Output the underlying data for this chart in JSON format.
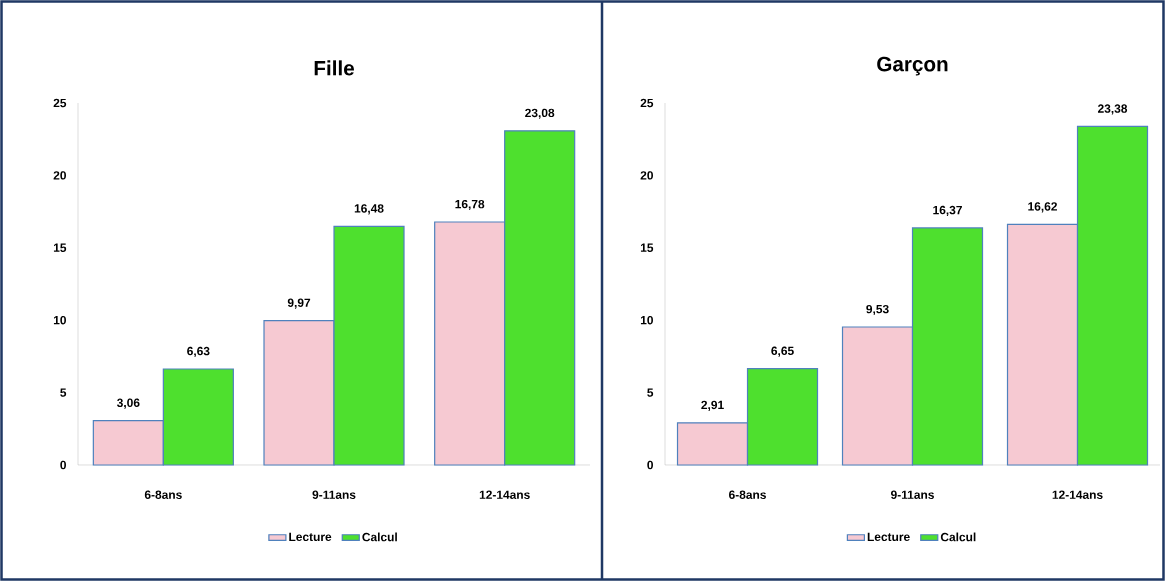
{
  "chart_data": [
    {
      "type": "bar",
      "title": "Fille",
      "categories": [
        "6-8ans",
        "9-11ans",
        "12-14ans"
      ],
      "series": [
        {
          "name": "Lecture",
          "color": "#f6c9d2",
          "values": [
            3.06,
            9.97,
            16.78
          ],
          "value_labels": [
            "3,06",
            "9,97",
            "16,78"
          ]
        },
        {
          "name": "Calcul",
          "color": "#4ee02e",
          "values": [
            6.63,
            16.48,
            23.08
          ],
          "value_labels": [
            "6,63",
            "16,48",
            "23,08"
          ]
        }
      ],
      "ylim": [
        0,
        25
      ],
      "yticks": [
        0,
        5,
        10,
        15,
        20,
        25
      ],
      "grid": false,
      "legend": "bottom"
    },
    {
      "type": "bar",
      "title": "Garçon",
      "categories": [
        "6-8ans",
        "9-11ans",
        "12-14ans"
      ],
      "series": [
        {
          "name": "Lecture",
          "color": "#f6c9d2",
          "values": [
            2.91,
            9.53,
            16.62
          ],
          "value_labels": [
            "2,91",
            "9,53",
            "16,62"
          ]
        },
        {
          "name": "Calcul",
          "color": "#4ee02e",
          "values": [
            6.65,
            16.37,
            23.38
          ],
          "value_labels": [
            "6,65",
            "16,37",
            "23,38"
          ]
        }
      ],
      "ylim": [
        0,
        25
      ],
      "yticks": [
        0,
        5,
        10,
        15,
        20,
        25
      ],
      "grid": false,
      "legend": "bottom"
    }
  ]
}
